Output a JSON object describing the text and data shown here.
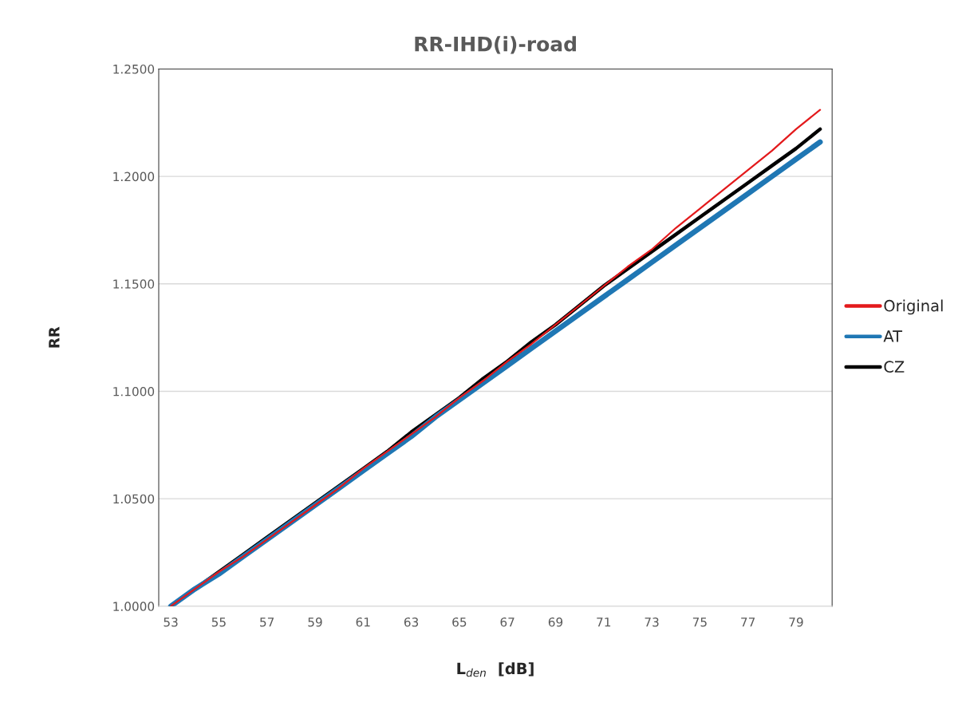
{
  "chart_data": {
    "type": "line",
    "title": "RR-IHD(i)-road",
    "xlabel": "L$_{den}$  [dB]",
    "ylabel": "RR",
    "categories": [
      "53",
      null,
      "55",
      null,
      "57",
      null,
      "59",
      null,
      "61",
      null,
      "63",
      null,
      "65",
      null,
      "67",
      null,
      "69",
      null,
      "71",
      null,
      "73",
      null,
      "75",
      null,
      "77",
      null,
      "79",
      null
    ],
    "series": [
      {
        "name": "Original",
        "color": "#e31a1c",
        "values": [
          1.0,
          1.008,
          1.016,
          1.023,
          1.031,
          1.039,
          1.047,
          1.055,
          1.064,
          1.072,
          1.08,
          1.088,
          1.097,
          1.105,
          1.114,
          1.122,
          1.131,
          1.14,
          1.149,
          1.158,
          1.166,
          1.176,
          1.185,
          1.194,
          1.203,
          1.212,
          1.222,
          1.231
        ]
      },
      {
        "name": "AT",
        "color": "#1f77b4",
        "values": [
          1.0,
          1.008,
          1.015,
          1.023,
          1.031,
          1.039,
          1.047,
          1.055,
          1.063,
          1.071,
          1.079,
          1.088,
          1.096,
          1.104,
          1.112,
          1.12,
          1.128,
          1.136,
          1.144,
          1.152,
          1.16,
          1.168,
          1.176,
          1.184,
          1.192,
          1.2,
          1.208,
          1.216
        ]
      },
      {
        "name": "CZ",
        "color": "#000000",
        "values": [
          1.0,
          1.008,
          1.016,
          1.024,
          1.032,
          1.04,
          1.048,
          1.056,
          1.064,
          1.072,
          1.081,
          1.089,
          1.097,
          1.106,
          1.114,
          1.123,
          1.131,
          1.14,
          1.149,
          1.157,
          1.165,
          1.173,
          1.181,
          1.189,
          1.197,
          1.205,
          1.213,
          1.222
        ]
      }
    ],
    "ylim": [
      1.0,
      1.25
    ],
    "yticks": [
      {
        "value": 1.0,
        "label": "1.0000"
      },
      {
        "value": 1.05,
        "label": "1.0500"
      },
      {
        "value": 1.1,
        "label": "1.1000"
      },
      {
        "value": 1.15,
        "label": "1.1500"
      },
      {
        "value": 1.2,
        "label": "1.2000"
      },
      {
        "value": 1.25,
        "label": "1.2500"
      }
    ],
    "grid": "y",
    "legend": "right",
    "line_style": "solid",
    "marker": "none"
  }
}
